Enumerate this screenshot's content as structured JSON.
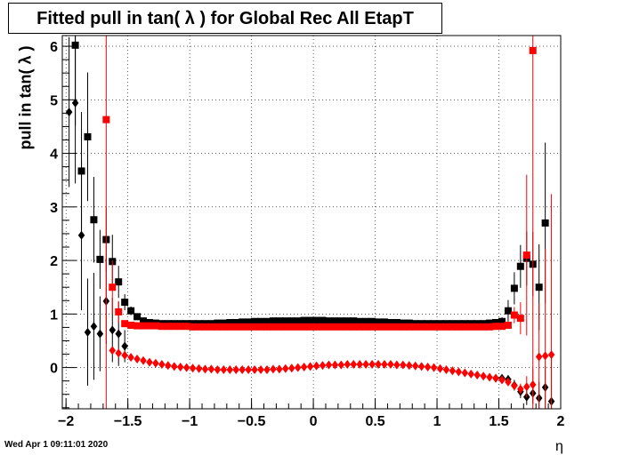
{
  "title": "Fitted pull in tan( λ ) for Global Rec All EtapT",
  "ylabel": "pull in tan( λ )",
  "xlabel": "η",
  "datestamp": "Wed Apr  1 09:11:01 2020",
  "chart_data": {
    "type": "scatter",
    "title": "Fitted pull in tan( λ ) for Global Rec All EtapT",
    "xlabel": "η",
    "ylabel": "pull in tan( λ )",
    "xlim": [
      -2.03,
      2.0
    ],
    "ylim": [
      -0.77,
      6.2
    ],
    "xticks": [
      -2,
      -1.5,
      -1,
      -0.5,
      0,
      0.5,
      1,
      1.5,
      2
    ],
    "xtick_labels": [
      "−2",
      "−1.5",
      "−1",
      "−0.5",
      "0",
      "0.5",
      "1",
      "1.5",
      "2"
    ],
    "yticks": [
      0,
      1,
      2,
      3,
      4,
      5,
      6
    ],
    "grid": true,
    "series": [
      {
        "marker": "square",
        "color": "#000000",
        "x": [
          -1.925,
          -1.875,
          -1.825,
          -1.775,
          -1.725,
          -1.675,
          -1.625,
          -1.575,
          -1.525,
          -1.475,
          -1.425,
          -1.375,
          -1.325,
          -1.275,
          -1.225,
          -1.175,
          -1.125,
          -1.075,
          -1.025,
          -0.975,
          -0.925,
          -0.875,
          -0.825,
          -0.775,
          -0.725,
          -0.675,
          -0.625,
          -0.575,
          -0.525,
          -0.475,
          -0.425,
          -0.375,
          -0.325,
          -0.275,
          -0.225,
          -0.175,
          -0.125,
          -0.075,
          -0.025,
          0.025,
          0.075,
          0.125,
          0.175,
          0.225,
          0.275,
          0.325,
          0.375,
          0.425,
          0.475,
          0.525,
          0.575,
          0.625,
          0.675,
          0.725,
          0.775,
          0.825,
          0.875,
          0.925,
          0.975,
          1.025,
          1.075,
          1.125,
          1.175,
          1.225,
          1.275,
          1.325,
          1.375,
          1.425,
          1.475,
          1.525,
          1.575,
          1.625,
          1.675,
          1.725,
          1.775,
          1.825,
          1.875
        ],
        "y": [
          6.02,
          3.67,
          4.31,
          2.76,
          2.02,
          2.39,
          1.98,
          1.6,
          1.22,
          1.06,
          0.95,
          0.87,
          0.84,
          0.83,
          0.82,
          0.82,
          0.82,
          0.82,
          0.82,
          0.82,
          0.82,
          0.82,
          0.82,
          0.83,
          0.83,
          0.84,
          0.84,
          0.85,
          0.85,
          0.86,
          0.86,
          0.86,
          0.87,
          0.87,
          0.87,
          0.87,
          0.87,
          0.88,
          0.88,
          0.88,
          0.88,
          0.87,
          0.87,
          0.87,
          0.87,
          0.87,
          0.86,
          0.86,
          0.86,
          0.85,
          0.85,
          0.84,
          0.84,
          0.83,
          0.83,
          0.82,
          0.82,
          0.82,
          0.82,
          0.82,
          0.82,
          0.82,
          0.82,
          0.82,
          0.82,
          0.82,
          0.82,
          0.83,
          0.84,
          0.86,
          1.06,
          1.48,
          1.89,
          2.04,
          1.93,
          1.5,
          2.7
        ],
        "err": [
          1.5,
          1.1,
          1.2,
          0.8,
          0.55,
          0.6,
          0.5,
          0.3,
          0.15,
          0.08,
          0.05,
          0.03,
          0.02,
          0.02,
          0.02,
          0.02,
          0.02,
          0.02,
          0.02,
          0.02,
          0.02,
          0.02,
          0.02,
          0.02,
          0.02,
          0.02,
          0.02,
          0.02,
          0.02,
          0.02,
          0.02,
          0.02,
          0.02,
          0.02,
          0.02,
          0.02,
          0.02,
          0.02,
          0.02,
          0.02,
          0.02,
          0.02,
          0.02,
          0.02,
          0.02,
          0.02,
          0.02,
          0.02,
          0.02,
          0.02,
          0.02,
          0.02,
          0.02,
          0.02,
          0.02,
          0.02,
          0.02,
          0.02,
          0.02,
          0.02,
          0.02,
          0.02,
          0.02,
          0.02,
          0.02,
          0.02,
          0.02,
          0.03,
          0.05,
          0.08,
          0.2,
          0.3,
          0.4,
          0.5,
          0.6,
          0.8,
          1.5
        ]
      },
      {
        "marker": "diamond",
        "color": "#000000",
        "x": [
          -1.975,
          -1.925,
          -1.875,
          -1.825,
          -1.775,
          -1.725,
          -1.675,
          -1.625,
          -1.575,
          -1.525,
          1.475,
          1.525,
          1.575,
          1.625,
          1.675,
          1.725,
          1.775,
          1.825,
          1.875,
          1.925
        ],
        "y": [
          4.77,
          4.94,
          2.47,
          0.66,
          0.77,
          0.63,
          1.24,
          0.7,
          0.63,
          0.4,
          -0.2,
          -0.2,
          -0.22,
          -0.33,
          -0.45,
          -0.55,
          -0.48,
          -0.57,
          -0.37,
          -0.63
        ],
        "err": [
          1.4,
          1.5,
          1.4,
          1.0,
          1.0,
          0.7,
          0.8,
          0.6,
          0.6,
          0.3,
          0.05,
          0.06,
          0.08,
          0.1,
          0.12,
          0.15,
          0.2,
          0.3,
          0.4,
          0.8
        ]
      },
      {
        "marker": "square",
        "color": "#ff0000",
        "x": [
          -1.675,
          -1.625,
          -1.575,
          -1.525,
          -1.475,
          -1.425,
          -1.375,
          -1.325,
          -1.275,
          -1.225,
          -1.175,
          -1.125,
          -1.075,
          -1.025,
          -0.975,
          -0.925,
          -0.875,
          -0.825,
          -0.775,
          -0.725,
          -0.675,
          -0.625,
          -0.575,
          -0.525,
          -0.475,
          -0.425,
          -0.375,
          -0.325,
          -0.275,
          -0.225,
          -0.175,
          -0.125,
          -0.075,
          -0.025,
          0.025,
          0.075,
          0.125,
          0.175,
          0.225,
          0.275,
          0.325,
          0.375,
          0.425,
          0.475,
          0.525,
          0.575,
          0.625,
          0.675,
          0.725,
          0.775,
          0.825,
          0.875,
          0.925,
          0.975,
          1.025,
          1.075,
          1.125,
          1.175,
          1.225,
          1.275,
          1.325,
          1.375,
          1.425,
          1.475,
          1.525,
          1.575,
          1.625,
          1.675,
          1.725,
          1.775
        ],
        "y": [
          4.63,
          1.5,
          1.04,
          0.82,
          0.79,
          0.78,
          0.78,
          0.78,
          0.78,
          0.77,
          0.77,
          0.77,
          0.77,
          0.77,
          0.76,
          0.76,
          0.76,
          0.76,
          0.76,
          0.76,
          0.76,
          0.76,
          0.76,
          0.76,
          0.76,
          0.76,
          0.76,
          0.76,
          0.76,
          0.76,
          0.76,
          0.76,
          0.76,
          0.76,
          0.76,
          0.76,
          0.76,
          0.76,
          0.76,
          0.76,
          0.76,
          0.76,
          0.76,
          0.76,
          0.76,
          0.76,
          0.76,
          0.76,
          0.76,
          0.76,
          0.76,
          0.76,
          0.76,
          0.76,
          0.76,
          0.76,
          0.76,
          0.76,
          0.76,
          0.76,
          0.76,
          0.76,
          0.76,
          0.77,
          0.77,
          0.79,
          0.98,
          0.92,
          2.1,
          5.92
        ],
        "err": [
          6.0,
          0.5,
          0.2,
          0.05,
          0.03,
          0.02,
          0.02,
          0.02,
          0.02,
          0.02,
          0.02,
          0.02,
          0.02,
          0.02,
          0.02,
          0.02,
          0.02,
          0.02,
          0.02,
          0.02,
          0.02,
          0.02,
          0.02,
          0.02,
          0.02,
          0.02,
          0.02,
          0.02,
          0.02,
          0.02,
          0.02,
          0.02,
          0.02,
          0.02,
          0.02,
          0.02,
          0.02,
          0.02,
          0.02,
          0.02,
          0.02,
          0.02,
          0.02,
          0.02,
          0.02,
          0.02,
          0.02,
          0.02,
          0.02,
          0.02,
          0.02,
          0.02,
          0.02,
          0.02,
          0.02,
          0.02,
          0.02,
          0.02,
          0.02,
          0.02,
          0.02,
          0.02,
          0.02,
          0.03,
          0.04,
          0.06,
          0.15,
          0.3,
          1.5,
          7.0
        ]
      },
      {
        "marker": "diamond",
        "color": "#ff0000",
        "x": [
          -1.625,
          -1.575,
          -1.525,
          -1.475,
          -1.425,
          -1.375,
          -1.325,
          -1.275,
          -1.225,
          -1.175,
          -1.125,
          -1.075,
          -1.025,
          -0.975,
          -0.925,
          -0.875,
          -0.825,
          -0.775,
          -0.725,
          -0.675,
          -0.625,
          -0.575,
          -0.525,
          -0.475,
          -0.425,
          -0.375,
          -0.325,
          -0.275,
          -0.225,
          -0.175,
          -0.125,
          -0.075,
          -0.025,
          0.025,
          0.075,
          0.125,
          0.175,
          0.225,
          0.275,
          0.325,
          0.375,
          0.425,
          0.475,
          0.525,
          0.575,
          0.625,
          0.675,
          0.725,
          0.775,
          0.825,
          0.875,
          0.925,
          0.975,
          1.025,
          1.075,
          1.125,
          1.175,
          1.225,
          1.275,
          1.325,
          1.375,
          1.425,
          1.475,
          1.525,
          1.575,
          1.625,
          1.675,
          1.725,
          1.775,
          1.825,
          1.875,
          1.925
        ],
        "y": [
          0.32,
          0.27,
          0.23,
          0.19,
          0.16,
          0.13,
          0.1,
          0.08,
          0.06,
          0.04,
          0.02,
          0.01,
          0.0,
          -0.01,
          -0.02,
          -0.03,
          -0.03,
          -0.04,
          -0.04,
          -0.04,
          -0.04,
          -0.04,
          -0.04,
          -0.04,
          -0.04,
          -0.04,
          -0.03,
          -0.03,
          -0.02,
          -0.01,
          0.0,
          0.01,
          0.02,
          0.03,
          0.04,
          0.05,
          0.05,
          0.05,
          0.06,
          0.06,
          0.06,
          0.06,
          0.06,
          0.06,
          0.06,
          0.06,
          0.05,
          0.05,
          0.04,
          0.03,
          0.02,
          0.01,
          0.0,
          -0.02,
          -0.04,
          -0.06,
          -0.08,
          -0.1,
          -0.12,
          -0.14,
          -0.16,
          -0.18,
          -0.2,
          -0.23,
          -0.27,
          -0.34,
          -0.4,
          -0.36,
          -0.32,
          0.2,
          0.22,
          0.24
        ],
        "err": [
          0.04,
          0.03,
          0.03,
          0.02,
          0.02,
          0.02,
          0.02,
          0.02,
          0.02,
          0.02,
          0.02,
          0.02,
          0.02,
          0.02,
          0.02,
          0.02,
          0.02,
          0.02,
          0.02,
          0.02,
          0.02,
          0.02,
          0.02,
          0.02,
          0.02,
          0.02,
          0.02,
          0.02,
          0.02,
          0.02,
          0.02,
          0.02,
          0.02,
          0.02,
          0.02,
          0.02,
          0.02,
          0.02,
          0.02,
          0.02,
          0.02,
          0.02,
          0.02,
          0.02,
          0.02,
          0.02,
          0.02,
          0.02,
          0.02,
          0.02,
          0.02,
          0.02,
          0.02,
          0.02,
          0.02,
          0.02,
          0.02,
          0.02,
          0.02,
          0.02,
          0.02,
          0.02,
          0.02,
          0.03,
          0.04,
          0.06,
          0.1,
          0.2,
          0.3,
          1.0,
          2.0,
          3.0
        ]
      }
    ]
  }
}
